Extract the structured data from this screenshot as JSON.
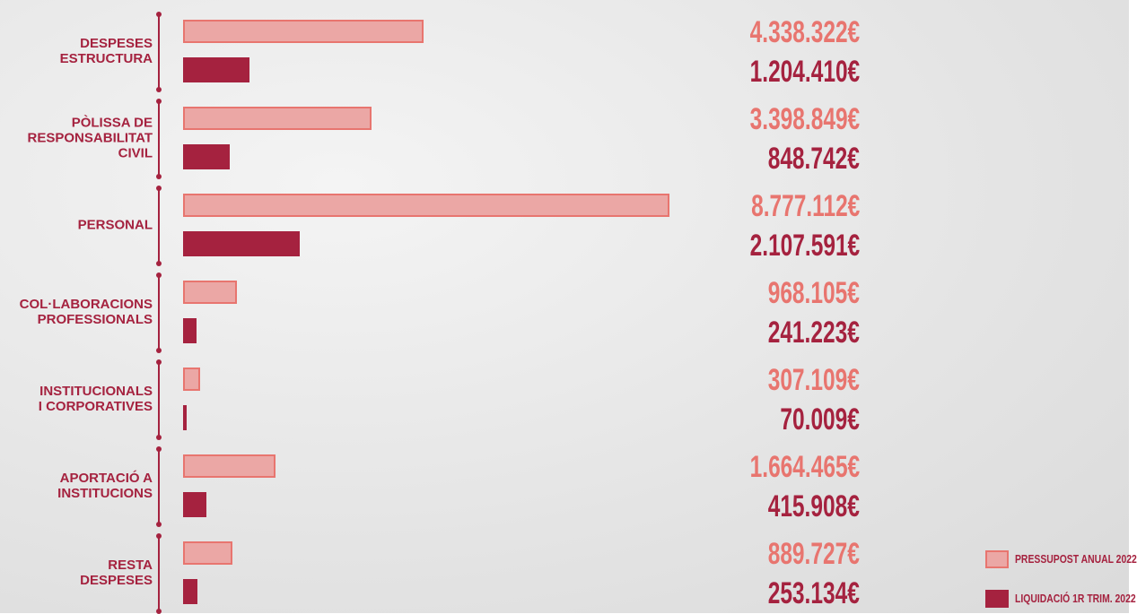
{
  "chart_data": {
    "type": "bar",
    "orientation": "horizontal",
    "categories": [
      "DESPESES\nESTRUCTURA",
      "PÒLISSA DE\nRESPONSABILITAT CIVIL",
      "PERSONAL",
      "COL·LABORACIONS\nPROFESSIONALS",
      "INSTITUCIONALS\nI CORPORATIVES",
      "APORTACIÓ A\nINSTITUCIONS",
      "RESTA\nDESPESES"
    ],
    "series": [
      {
        "name": "PRESSUPOST ANUAL 2022",
        "color": "#eba7a5",
        "border": "#e8756f",
        "label_color": "#e8756f",
        "values": [
          4338322,
          3398849,
          8777112,
          968105,
          307109,
          1664465,
          889727
        ],
        "value_labels": [
          "4.338.322€",
          "3.398.849€",
          "8.777.112€",
          "968.105€",
          "307.109€",
          "1.664.465€",
          "889.727€"
        ]
      },
      {
        "name": "LIQUIDACIÓ 1R TRIM. 2022",
        "color": "#a5223f",
        "border": "#a5223f",
        "label_color": "#a5223f",
        "values": [
          1204410,
          848742,
          2107591,
          241223,
          70009,
          415908,
          253134
        ],
        "value_labels": [
          "1.204.410€",
          "848.742€",
          "2.107.591€",
          "241.223€",
          "70.009€",
          "415.908€",
          "253.134€"
        ]
      }
    ],
    "legend": "bottom-right"
  }
}
